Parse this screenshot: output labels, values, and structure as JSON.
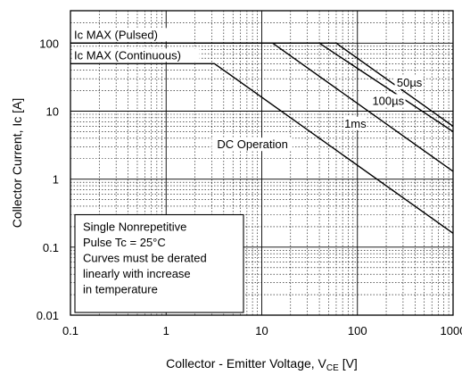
{
  "chart_data": {
    "type": "line",
    "title": "",
    "xlabel": "Collector - Emitter Voltage, V",
    "xlabel_sub": "CE",
    "xlabel_unit": " [V]",
    "ylabel": "Collector Current, Ic [A]",
    "xscale": "log",
    "yscale": "log",
    "xlim": [
      0.1,
      1000
    ],
    "ylim": [
      0.01,
      300
    ],
    "grid": true,
    "x_ticks": [
      {
        "value": 0.1,
        "label": "0.1"
      },
      {
        "value": 1,
        "label": "1"
      },
      {
        "value": 10,
        "label": "10"
      },
      {
        "value": 100,
        "label": "100"
      },
      {
        "value": 1000,
        "label": "1000"
      }
    ],
    "y_ticks": [
      {
        "value": 0.01,
        "label": "0.01"
      },
      {
        "value": 0.1,
        "label": "0.1"
      },
      {
        "value": 1,
        "label": "1"
      },
      {
        "value": 10,
        "label": "10"
      },
      {
        "value": 100,
        "label": "100"
      }
    ],
    "series": [
      {
        "name": "50µs",
        "x": [
          0.1,
          60,
          1000
        ],
        "y": [
          100,
          100,
          6
        ]
      },
      {
        "name": "100µs",
        "x": [
          0.1,
          40,
          1000
        ],
        "y": [
          100,
          100,
          5
        ]
      },
      {
        "name": "1ms",
        "x": [
          0.1,
          13,
          1000
        ],
        "y": [
          100,
          100,
          1.3
        ]
      },
      {
        "name": "DC Operation",
        "x": [
          0.1,
          3.2,
          1000
        ],
        "y": [
          50,
          50,
          0.16
        ]
      }
    ],
    "labels": [
      {
        "text": "Ic MAX (Pulsed)",
        "x": 0.1,
        "y": 100
      },
      {
        "text": "Ic MAX (Continuous)",
        "x": 0.1,
        "y": 50
      },
      {
        "text": "50µs",
        "x": 350,
        "y": 26
      },
      {
        "text": "100µs",
        "x": 210,
        "y": 14
      },
      {
        "text": "1ms",
        "x": 95,
        "y": 6.5
      },
      {
        "text": "DC Operation",
        "x": 8,
        "y": 3.2
      }
    ],
    "note_lines": [
      "Single Nonrepetitive",
      "Pulse Tc = 25°C",
      "Curves must be derated",
      "linearly with increase",
      "in temperature"
    ],
    "line_color": "#000000"
  }
}
